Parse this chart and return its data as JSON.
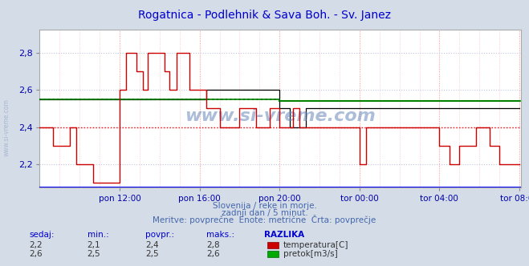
{
  "title": "Rogatnica - Podlehnik & Sava Boh. - Sv. Janez",
  "title_color": "#0000cc",
  "bg_color": "#d4dce8",
  "plot_bg_color": "#ffffff",
  "grid_color": "#ffb0b0",
  "grid_color2": "#c0c8e0",
  "xlabel_color": "#0000aa",
  "ylabel_color": "#0000aa",
  "title_fontsize": 10,
  "xlim": [
    0,
    289
  ],
  "ylim": [
    2.075,
    2.925
  ],
  "yticks": [
    2.2,
    2.4,
    2.6,
    2.8
  ],
  "xtick_labels": [
    "pon 12:00",
    "pon 16:00",
    "pon 20:00",
    "tor 00:00",
    "tor 04:00",
    "tor 08:00"
  ],
  "xtick_positions": [
    48,
    96,
    144,
    192,
    240,
    288
  ],
  "watermark": "www.si-vreme.com",
  "subtitle1": "Slovenija / reke in morje.",
  "subtitle2": "zadnji dan / 5 minut.",
  "subtitle3": "Meritve: povprečne  Enote: metrične  Črta: povprečje",
  "subtitle_color": "#4466aa",
  "bottom_label_color": "#0000cc",
  "temp_color": "#cc0000",
  "flow_color": "#007700",
  "black_color": "#000000",
  "temp_avg": 2.4,
  "flow_avg_before": 2.55,
  "flow_avg_after": 2.54,
  "flow_change_x": 144,
  "temp_avg_color": "#ff0000",
  "temp_avg_style": ":",
  "flow_avg_color": "#00bb00",
  "flow_avg_style": ":",
  "table_headers": [
    "sedaj:",
    "min.:",
    "povpr.:",
    "maks.:",
    "RAZLIKA"
  ],
  "table_row1": [
    "2,2",
    "2,1",
    "2,4",
    "2,8"
  ],
  "table_row2": [
    "2,6",
    "2,5",
    "2,5",
    "2,6"
  ],
  "legend1": "temperatura[C]",
  "legend2": "pretok[m3/s]",
  "n": 289
}
